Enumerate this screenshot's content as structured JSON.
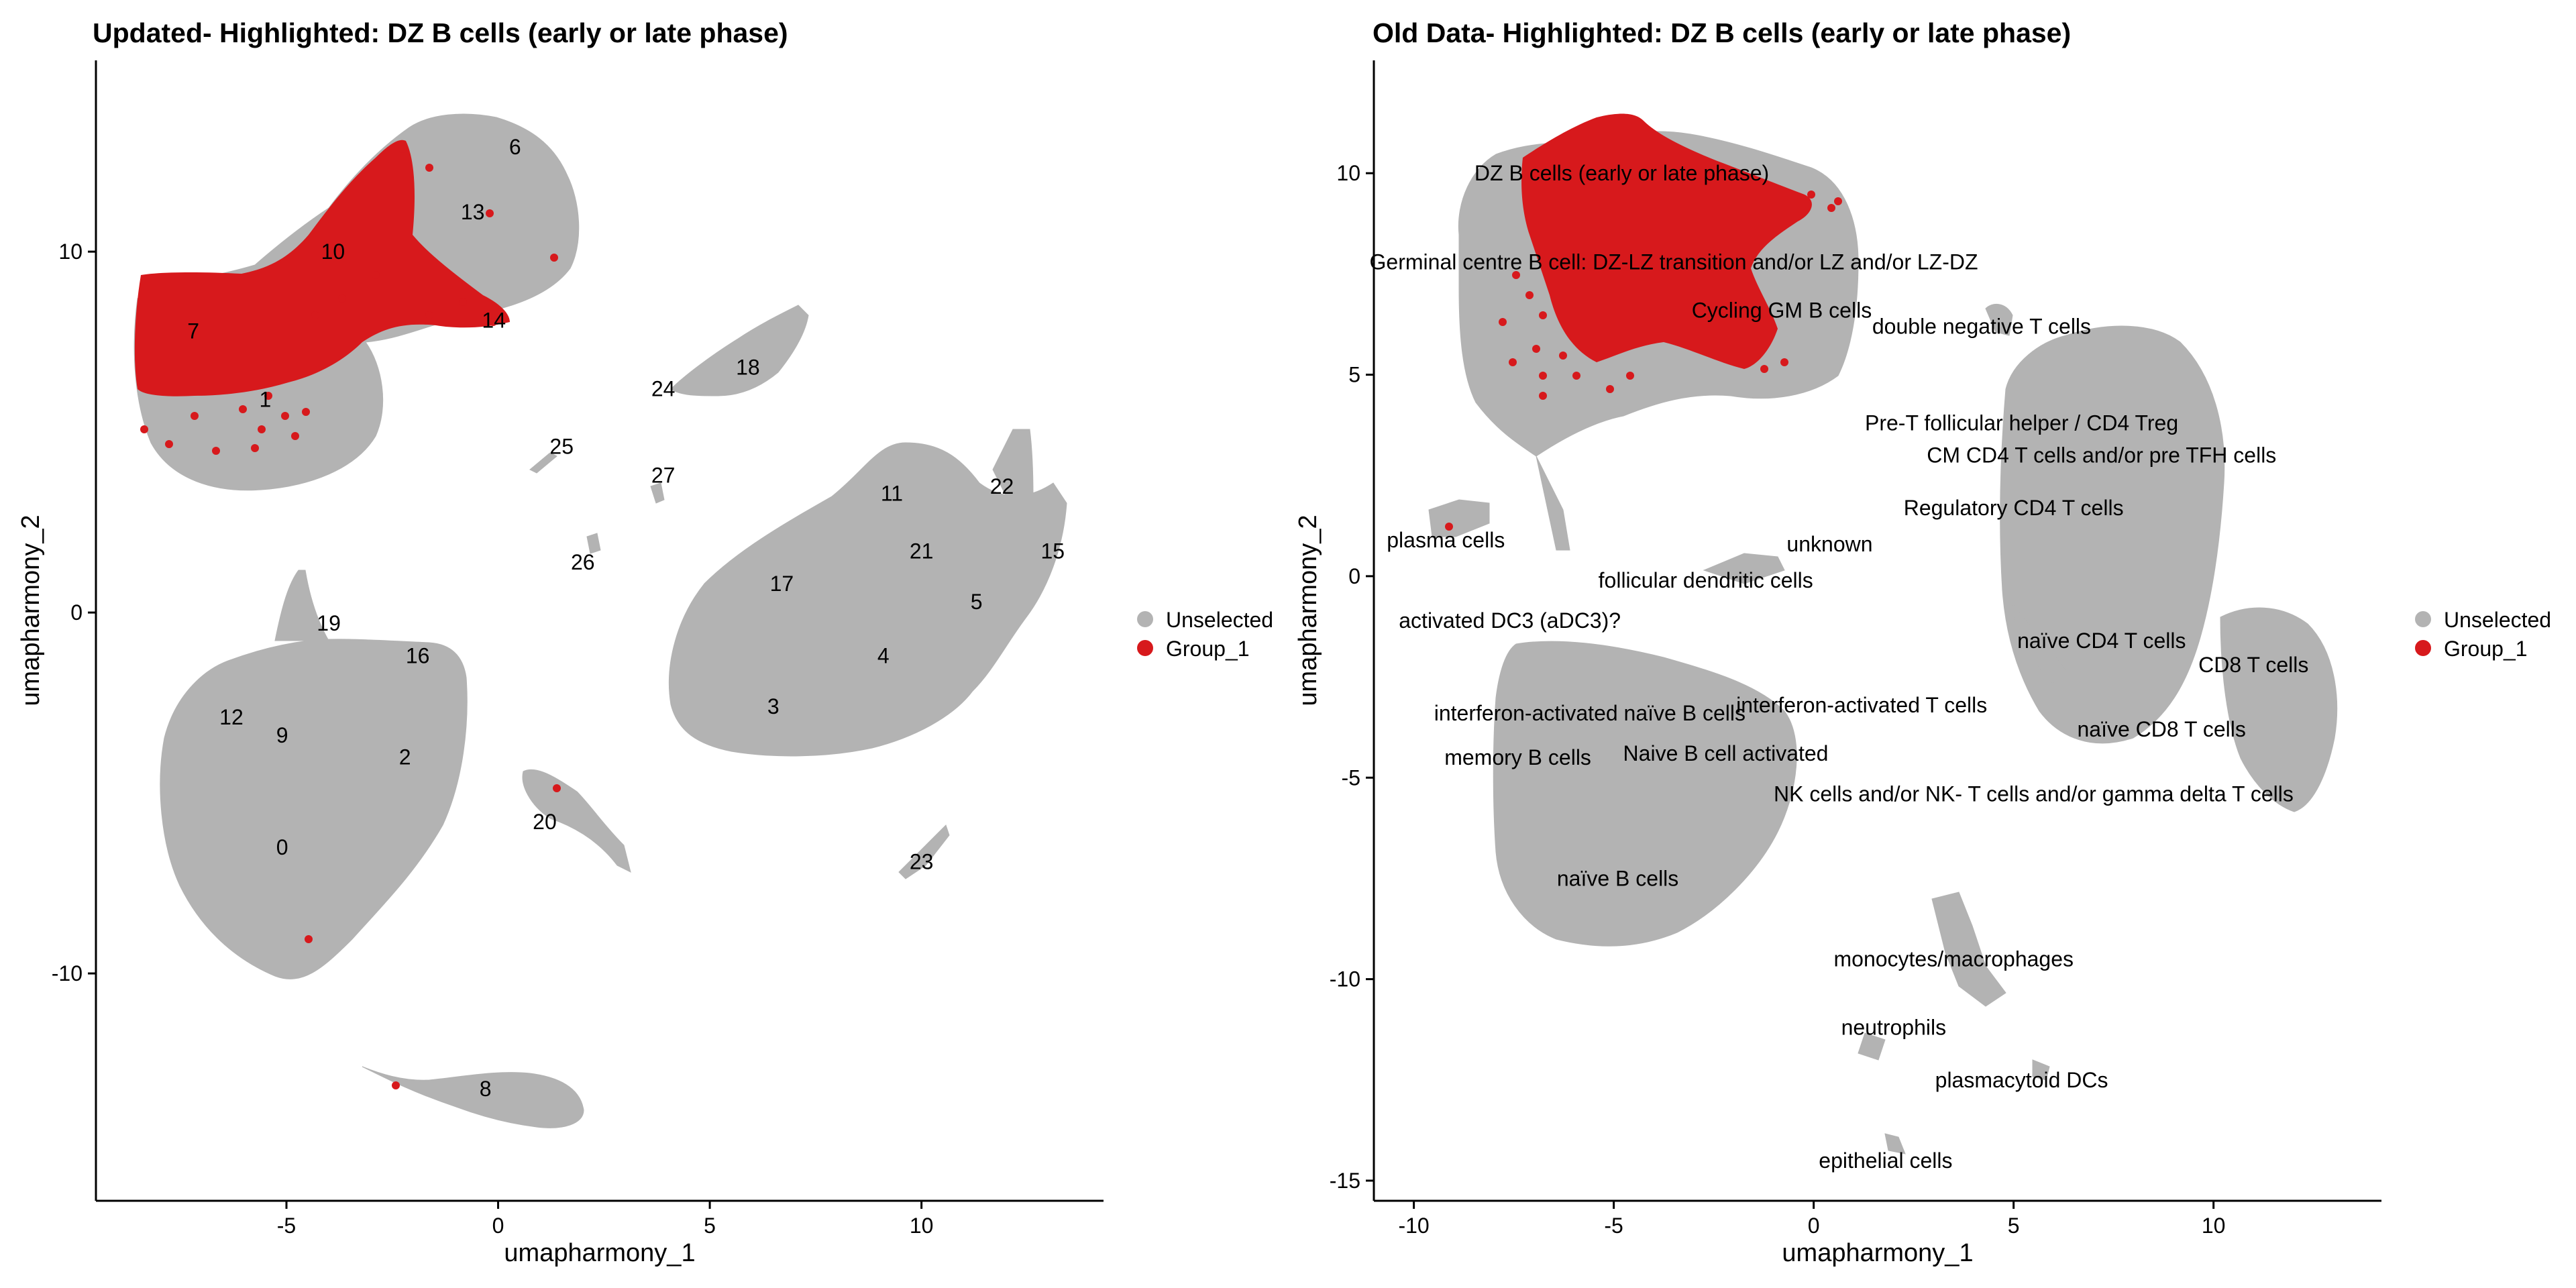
{
  "chart_data": [
    {
      "type": "scatter",
      "title": "Updated- Highlighted: DZ B cells (early or late phase)",
      "xlabel": "umapharmony_1",
      "ylabel": "umapharmony_2",
      "xlim": [
        -9.5,
        14.3
      ],
      "ylim": [
        -16.3,
        15.3
      ],
      "xticks": [
        -5,
        0,
        5,
        10
      ],
      "yticks": [
        -10,
        0,
        10
      ],
      "legend": {
        "placement": "right",
        "entries": [
          {
            "label": "Unselected",
            "color": "#b3b3b3"
          },
          {
            "label": "Group_1",
            "color": "#d7191c"
          }
        ]
      },
      "grid": false,
      "clusters": [
        {
          "label": "0",
          "x": -5.1,
          "y": -6.5
        },
        {
          "label": "1",
          "x": -5.5,
          "y": 5.9
        },
        {
          "label": "2",
          "x": -2.2,
          "y": -4.0
        },
        {
          "label": "3",
          "x": 6.5,
          "y": -2.6
        },
        {
          "label": "4",
          "x": 9.1,
          "y": -1.2
        },
        {
          "label": "5",
          "x": 11.3,
          "y": 0.3
        },
        {
          "label": "6",
          "x": 0.4,
          "y": 12.9
        },
        {
          "label": "7",
          "x": -7.2,
          "y": 7.8
        },
        {
          "label": "8",
          "x": -0.3,
          "y": -13.2
        },
        {
          "label": "9",
          "x": -5.1,
          "y": -3.4
        },
        {
          "label": "10",
          "x": -3.9,
          "y": 10.0
        },
        {
          "label": "11",
          "x": 9.3,
          "y": 3.3
        },
        {
          "label": "12",
          "x": -6.3,
          "y": -2.9
        },
        {
          "label": "13",
          "x": -0.6,
          "y": 11.1
        },
        {
          "label": "14",
          "x": -0.1,
          "y": 8.1
        },
        {
          "label": "15",
          "x": 13.1,
          "y": 1.7
        },
        {
          "label": "16",
          "x": -1.9,
          "y": -1.2
        },
        {
          "label": "17",
          "x": 6.7,
          "y": 0.8
        },
        {
          "label": "18",
          "x": 5.9,
          "y": 6.8
        },
        {
          "label": "19",
          "x": -4.0,
          "y": -0.3
        },
        {
          "label": "20",
          "x": 1.1,
          "y": -5.8
        },
        {
          "label": "21",
          "x": 10.0,
          "y": 1.7
        },
        {
          "label": "22",
          "x": 11.9,
          "y": 3.5
        },
        {
          "label": "23",
          "x": 10.0,
          "y": -6.9
        },
        {
          "label": "24",
          "x": 3.9,
          "y": 6.2
        },
        {
          "label": "25",
          "x": 1.5,
          "y": 4.6
        },
        {
          "label": "26",
          "x": 2.0,
          "y": 1.4
        },
        {
          "label": "27",
          "x": 3.9,
          "y": 3.8
        }
      ]
    },
    {
      "type": "scatter",
      "title": "Old Data- Highlighted: DZ B cells (early or late phase)",
      "xlabel": "umapharmony_1",
      "ylabel": "umapharmony_2",
      "xlim": [
        -11.0,
        14.2
      ],
      "ylim": [
        -15.5,
        12.8
      ],
      "xticks": [
        -10,
        -5,
        0,
        5,
        10
      ],
      "yticks": [
        -15,
        -10,
        -5,
        0,
        5,
        10
      ],
      "legend": {
        "placement": "right",
        "entries": [
          {
            "label": "Unselected",
            "color": "#b3b3b3"
          },
          {
            "label": "Group_1",
            "color": "#d7191c"
          }
        ]
      },
      "grid": false,
      "clusters": [
        {
          "label": "DZ B cells (early or late phase)",
          "x": -4.8,
          "y": 10.0
        },
        {
          "label": "Germinal centre B cell: DZ-LZ transition and/or LZ and/or LZ-DZ",
          "x": -3.5,
          "y": 7.8
        },
        {
          "label": "Cycling GM B cells",
          "x": -0.8,
          "y": 6.6
        },
        {
          "label": "double negative T cells",
          "x": 4.2,
          "y": 6.2
        },
        {
          "label": "Pre-T follicular helper / CD4 Treg",
          "x": 5.2,
          "y": 3.8
        },
        {
          "label": "CM CD4 T cells  and/or pre TFH cells",
          "x": 7.2,
          "y": 3.0
        },
        {
          "label": "Regulatory CD4 T cells",
          "x": 5.0,
          "y": 1.7
        },
        {
          "label": "unknown",
          "x": 0.4,
          "y": 0.8
        },
        {
          "label": "plasma cells",
          "x": -9.2,
          "y": 0.9
        },
        {
          "label": "follicular dendritic cells",
          "x": -2.7,
          "y": -0.1
        },
        {
          "label": "activated DC3 (aDC3)?",
          "x": -7.6,
          "y": -1.1
        },
        {
          "label": "naïve CD4 T cells",
          "x": 7.2,
          "y": -1.6
        },
        {
          "label": "CD8 T cells",
          "x": 11.0,
          "y": -2.2
        },
        {
          "label": "interferon-activated naïve B cells",
          "x": -5.6,
          "y": -3.4
        },
        {
          "label": "interferon-activated T cells",
          "x": 1.2,
          "y": -3.2
        },
        {
          "label": "naïve CD8 T cells",
          "x": 8.7,
          "y": -3.8
        },
        {
          "label": "memory B cells",
          "x": -7.4,
          "y": -4.5
        },
        {
          "label": "Naive B cell activated",
          "x": -2.2,
          "y": -4.4
        },
        {
          "label": "NK cells and/or NK- T cells and/or gamma delta T cells",
          "x": 5.5,
          "y": -5.4
        },
        {
          "label": "naïve B cells",
          "x": -4.9,
          "y": -7.5
        },
        {
          "label": "monocytes/macrophages",
          "x": 3.5,
          "y": -9.5
        },
        {
          "label": "neutrophils",
          "x": 2.0,
          "y": -11.2
        },
        {
          "label": "plasmacytoid DCs",
          "x": 5.2,
          "y": -12.5
        },
        {
          "label": "epithelial cells",
          "x": 1.8,
          "y": -14.5
        }
      ]
    }
  ]
}
